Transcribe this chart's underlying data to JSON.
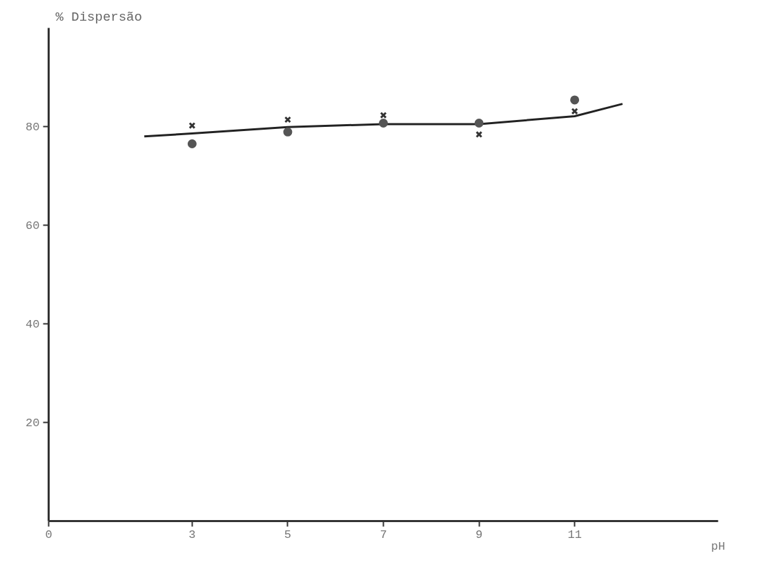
{
  "chart_data": {
    "type": "scatter",
    "ylabel": "% Dispersão",
    "xlabel": "pH",
    "xlim": [
      0,
      14
    ],
    "ylim": [
      0,
      100
    ],
    "xticks": [
      0,
      3,
      5,
      7,
      9,
      11
    ],
    "yticks": [
      20,
      40,
      60,
      80
    ],
    "grid": false,
    "series": [
      {
        "type": "line",
        "marker": "none",
        "color": "#222222",
        "x": [
          2,
          3,
          5,
          7,
          9,
          11,
          12
        ],
        "values": [
          78.0,
          78.6,
          79.9,
          80.5,
          80.5,
          82.1,
          84.6
        ]
      },
      {
        "marker": "cross",
        "color": "#333333",
        "x": [
          3,
          5,
          7,
          9,
          11
        ],
        "values": [
          80.2,
          81.4,
          82.3,
          78.4,
          83.1
        ]
      },
      {
        "marker": "circle",
        "color": "#555555",
        "x": [
          3,
          5,
          7,
          9,
          11
        ],
        "values": [
          76.5,
          78.9,
          80.7,
          80.7,
          85.4
        ]
      }
    ]
  }
}
